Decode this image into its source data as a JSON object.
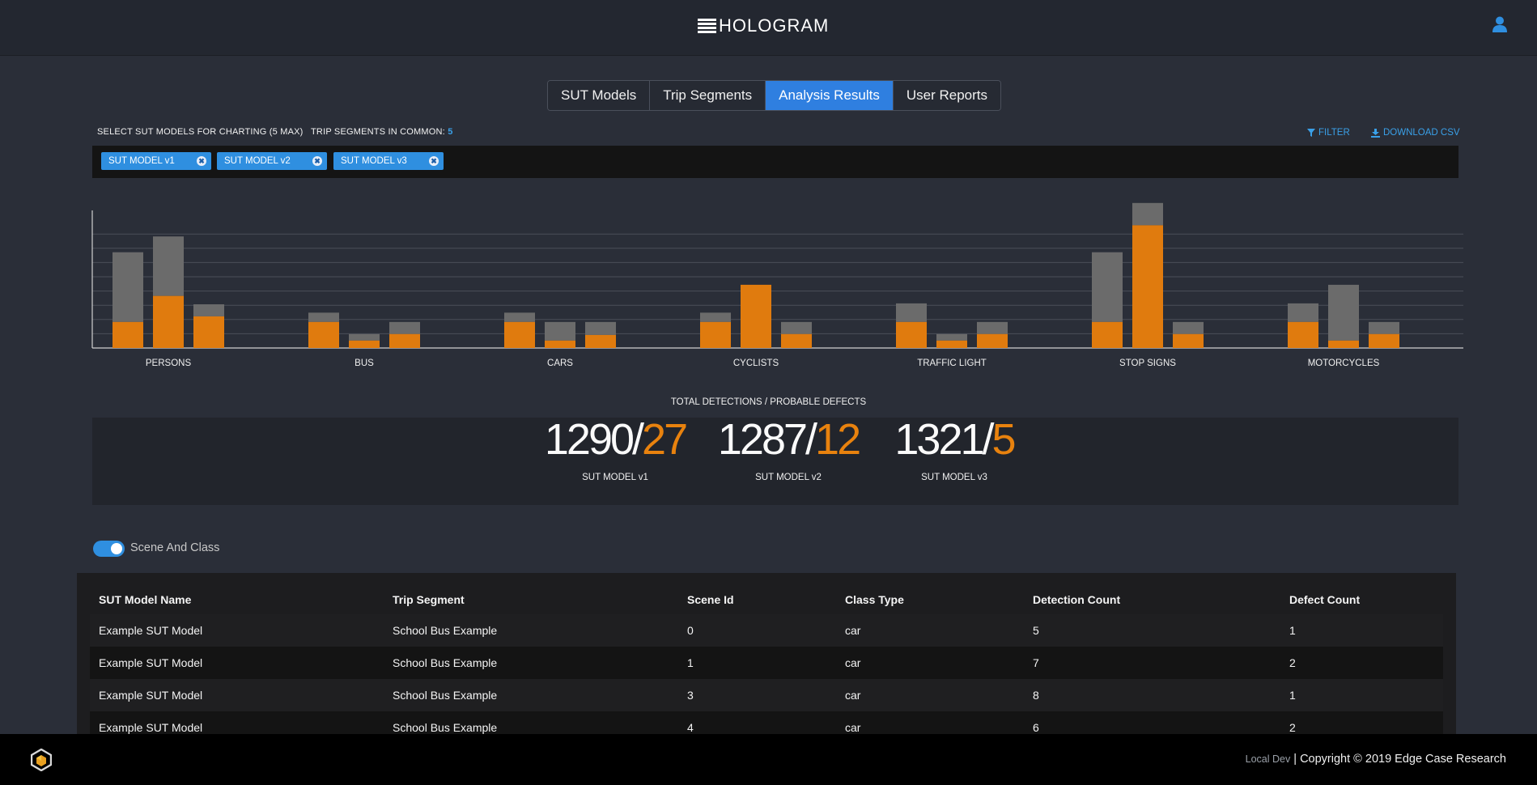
{
  "header": {
    "app_name": "HOLOGRAM",
    "user_icon": "user-icon"
  },
  "tabs": [
    {
      "label": "SUT Models",
      "active": false
    },
    {
      "label": "Trip Segments",
      "active": false
    },
    {
      "label": "Analysis Results",
      "active": true
    },
    {
      "label": "User Reports",
      "active": false
    }
  ],
  "controls": {
    "select_label": "SELECT SUT MODELS FOR CHARTING (5 MAX)",
    "trip_common_label": "TRIP SEGMENTS IN COMMON:",
    "trip_common_count": "5",
    "filter_label": "FILTER",
    "download_label": "DOWNLOAD CSV",
    "selected_models": [
      "SUT MODEL v1",
      "SUT MODEL v2",
      "SUT MODEL v3"
    ]
  },
  "chart_data": {
    "type": "bar",
    "stacked": true,
    "categories": [
      "PERSONS",
      "BUS",
      "CARS",
      "CYCLISTS",
      "TRAFFIC LIGHT",
      "STOP SIGNS",
      "MOTORCYCLES"
    ],
    "series_per_category": [
      "SUT MODEL v1",
      "SUT MODEL v2",
      "SUT MODEL v3"
    ],
    "orange_values": [
      [
        2.8,
        5.6,
        3.4
      ],
      [
        2.8,
        0.8,
        1.5
      ],
      [
        2.8,
        0.8,
        1.4
      ],
      [
        2.8,
        6.8,
        1.5
      ],
      [
        2.8,
        0.8,
        1.5
      ],
      [
        2.8,
        13.2,
        1.5
      ],
      [
        2.8,
        0.8,
        1.5
      ]
    ],
    "total_values": [
      [
        10.3,
        12.0,
        4.7
      ],
      [
        3.8,
        1.5,
        2.8
      ],
      [
        3.8,
        2.8,
        2.8
      ],
      [
        3.8,
        6.8,
        2.8
      ],
      [
        4.8,
        1.5,
        2.8
      ],
      [
        10.3,
        15.6,
        2.8
      ],
      [
        4.8,
        6.8,
        2.8
      ]
    ],
    "ylim": [
      0,
      14.8
    ],
    "grid": true,
    "colors": {
      "orange": "#e07b0e",
      "grey": "#6b6b6b"
    }
  },
  "totals": {
    "title": "TOTAL DETECTIONS / PROBABLE DEFECTS",
    "items": [
      {
        "detections": "1290",
        "defects": "27",
        "model": "SUT MODEL v1"
      },
      {
        "detections": "1287",
        "defects": "12",
        "model": "SUT MODEL v2"
      },
      {
        "detections": "1321",
        "defects": "5",
        "model": "SUT MODEL v3"
      }
    ]
  },
  "toggle": {
    "label": "Scene And Class",
    "on": true
  },
  "table": {
    "columns": [
      "SUT Model Name",
      "Trip Segment",
      "Scene Id",
      "Class Type",
      "Detection Count",
      "Defect Count"
    ],
    "rows": [
      [
        "Example SUT Model",
        "School Bus Example",
        "0",
        "car",
        "5",
        "1"
      ],
      [
        "Example SUT Model",
        "School Bus Example",
        "1",
        "car",
        "7",
        "2"
      ],
      [
        "Example SUT Model",
        "School Bus Example",
        "3",
        "car",
        "8",
        "1"
      ],
      [
        "Example SUT Model",
        "School Bus Example",
        "4",
        "car",
        "6",
        "2"
      ]
    ]
  },
  "footer": {
    "env": "Local Dev",
    "copyright": "| Copyright © 2019 Edge Case Research"
  }
}
